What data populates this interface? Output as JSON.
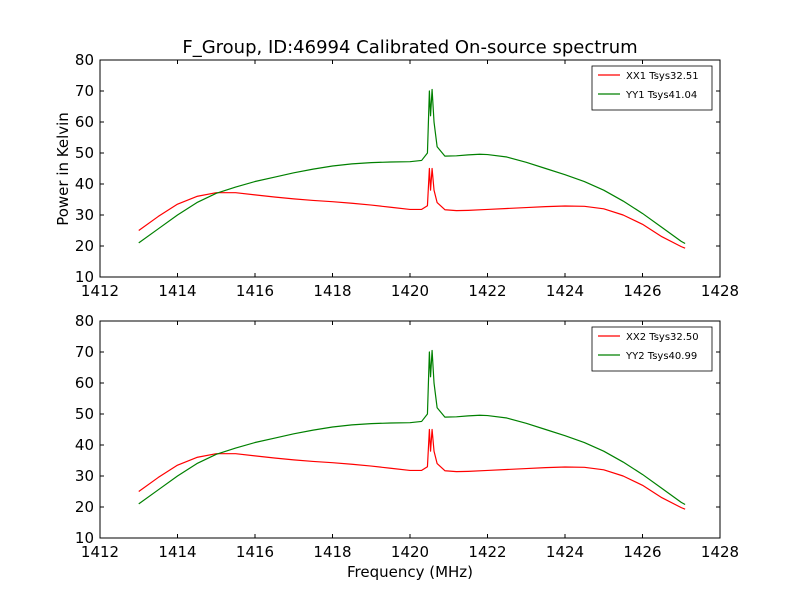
{
  "chart_data": {
    "type": "line",
    "title": "F_Group, ID:46994 Calibrated On-source spectrum",
    "xlabel": "Frequency (MHz)",
    "ylabel": "Power in Kelvin",
    "xlim": [
      1412,
      1428
    ],
    "ylim": [
      10,
      80
    ],
    "xticks": [
      "1412",
      "1414",
      "1416",
      "1418",
      "1420",
      "1422",
      "1424",
      "1426",
      "1428"
    ],
    "yticks": [
      "10",
      "20",
      "30",
      "40",
      "50",
      "60",
      "70",
      "80"
    ],
    "legend_position": "top-right",
    "grid": false,
    "panels": [
      {
        "series": [
          {
            "name": "XX1 Tsys32.51",
            "color": "#ff0000",
            "points": [
              [
                1413.0,
                25.0
              ],
              [
                1413.5,
                29.5
              ],
              [
                1414.0,
                33.5
              ],
              [
                1414.5,
                36.0
              ],
              [
                1415.0,
                37.2
              ],
              [
                1415.5,
                37.2
              ],
              [
                1416.0,
                36.5
              ],
              [
                1416.5,
                35.8
              ],
              [
                1417.0,
                35.2
              ],
              [
                1417.5,
                34.7
              ],
              [
                1418.0,
                34.3
              ],
              [
                1418.5,
                33.8
              ],
              [
                1419.0,
                33.2
              ],
              [
                1419.5,
                32.5
              ],
              [
                1420.0,
                31.8
              ],
              [
                1420.3,
                31.8
              ],
              [
                1420.45,
                33.0
              ],
              [
                1420.5,
                45.0
              ],
              [
                1420.53,
                38.0
              ],
              [
                1420.57,
                45.0
              ],
              [
                1420.62,
                38.0
              ],
              [
                1420.7,
                34.0
              ],
              [
                1420.9,
                31.7
              ],
              [
                1421.2,
                31.4
              ],
              [
                1421.5,
                31.5
              ],
              [
                1422.0,
                31.8
              ],
              [
                1422.5,
                32.1
              ],
              [
                1423.0,
                32.4
              ],
              [
                1423.5,
                32.7
              ],
              [
                1424.0,
                32.9
              ],
              [
                1424.5,
                32.8
              ],
              [
                1425.0,
                32.0
              ],
              [
                1425.5,
                30.0
              ],
              [
                1426.0,
                27.0
              ],
              [
                1426.5,
                23.0
              ],
              [
                1427.0,
                19.8
              ],
              [
                1427.1,
                19.3
              ]
            ]
          },
          {
            "name": "YY1 Tsys41.04",
            "color": "#008000",
            "points": [
              [
                1413.0,
                21.0
              ],
              [
                1413.5,
                25.5
              ],
              [
                1414.0,
                30.0
              ],
              [
                1414.5,
                34.0
              ],
              [
                1415.0,
                37.0
              ],
              [
                1415.5,
                39.0
              ],
              [
                1416.0,
                40.8
              ],
              [
                1416.5,
                42.2
              ],
              [
                1417.0,
                43.6
              ],
              [
                1417.5,
                44.8
              ],
              [
                1418.0,
                45.8
              ],
              [
                1418.5,
                46.5
              ],
              [
                1419.0,
                46.9
              ],
              [
                1419.5,
                47.1
              ],
              [
                1420.0,
                47.2
              ],
              [
                1420.3,
                47.6
              ],
              [
                1420.45,
                50.0
              ],
              [
                1420.5,
                70.0
              ],
              [
                1420.53,
                62.0
              ],
              [
                1420.57,
                70.5
              ],
              [
                1420.62,
                60.0
              ],
              [
                1420.7,
                52.0
              ],
              [
                1420.9,
                49.0
              ],
              [
                1421.2,
                49.1
              ],
              [
                1421.5,
                49.4
              ],
              [
                1421.8,
                49.6
              ],
              [
                1422.0,
                49.5
              ],
              [
                1422.5,
                48.7
              ],
              [
                1423.0,
                47.0
              ],
              [
                1423.5,
                45.0
              ],
              [
                1424.0,
                43.0
              ],
              [
                1424.5,
                40.8
              ],
              [
                1425.0,
                38.0
              ],
              [
                1425.5,
                34.5
              ],
              [
                1426.0,
                30.5
              ],
              [
                1426.5,
                26.0
              ],
              [
                1427.0,
                21.5
              ],
              [
                1427.1,
                20.8
              ]
            ]
          }
        ]
      },
      {
        "series": [
          {
            "name": "XX2 Tsys32.50",
            "color": "#ff0000",
            "points": [
              [
                1413.0,
                25.0
              ],
              [
                1413.5,
                29.5
              ],
              [
                1414.0,
                33.5
              ],
              [
                1414.5,
                36.0
              ],
              [
                1415.0,
                37.2
              ],
              [
                1415.5,
                37.2
              ],
              [
                1416.0,
                36.5
              ],
              [
                1416.5,
                35.8
              ],
              [
                1417.0,
                35.2
              ],
              [
                1417.5,
                34.7
              ],
              [
                1418.0,
                34.3
              ],
              [
                1418.5,
                33.8
              ],
              [
                1419.0,
                33.2
              ],
              [
                1419.5,
                32.5
              ],
              [
                1420.0,
                31.8
              ],
              [
                1420.3,
                31.8
              ],
              [
                1420.45,
                33.0
              ],
              [
                1420.5,
                45.0
              ],
              [
                1420.53,
                38.0
              ],
              [
                1420.57,
                45.0
              ],
              [
                1420.62,
                38.0
              ],
              [
                1420.7,
                34.0
              ],
              [
                1420.9,
                31.7
              ],
              [
                1421.2,
                31.4
              ],
              [
                1421.5,
                31.5
              ],
              [
                1422.0,
                31.8
              ],
              [
                1422.5,
                32.1
              ],
              [
                1423.0,
                32.4
              ],
              [
                1423.5,
                32.7
              ],
              [
                1424.0,
                32.9
              ],
              [
                1424.5,
                32.8
              ],
              [
                1425.0,
                32.0
              ],
              [
                1425.5,
                30.0
              ],
              [
                1426.0,
                27.0
              ],
              [
                1426.5,
                23.0
              ],
              [
                1427.0,
                19.8
              ],
              [
                1427.1,
                19.3
              ]
            ]
          },
          {
            "name": "YY2 Tsys40.99",
            "color": "#008000",
            "points": [
              [
                1413.0,
                21.0
              ],
              [
                1413.5,
                25.5
              ],
              [
                1414.0,
                30.0
              ],
              [
                1414.5,
                34.0
              ],
              [
                1415.0,
                37.0
              ],
              [
                1415.5,
                39.0
              ],
              [
                1416.0,
                40.8
              ],
              [
                1416.5,
                42.2
              ],
              [
                1417.0,
                43.6
              ],
              [
                1417.5,
                44.8
              ],
              [
                1418.0,
                45.8
              ],
              [
                1418.5,
                46.5
              ],
              [
                1419.0,
                46.9
              ],
              [
                1419.5,
                47.1
              ],
              [
                1420.0,
                47.2
              ],
              [
                1420.3,
                47.6
              ],
              [
                1420.45,
                50.0
              ],
              [
                1420.5,
                70.0
              ],
              [
                1420.53,
                62.0
              ],
              [
                1420.57,
                70.5
              ],
              [
                1420.62,
                60.0
              ],
              [
                1420.7,
                52.0
              ],
              [
                1420.9,
                49.0
              ],
              [
                1421.2,
                49.1
              ],
              [
                1421.5,
                49.4
              ],
              [
                1421.8,
                49.6
              ],
              [
                1422.0,
                49.5
              ],
              [
                1422.5,
                48.7
              ],
              [
                1423.0,
                47.0
              ],
              [
                1423.5,
                45.0
              ],
              [
                1424.0,
                43.0
              ],
              [
                1424.5,
                40.8
              ],
              [
                1425.0,
                38.0
              ],
              [
                1425.5,
                34.5
              ],
              [
                1426.0,
                30.5
              ],
              [
                1426.5,
                26.0
              ],
              [
                1427.0,
                21.5
              ],
              [
                1427.1,
                20.8
              ]
            ]
          }
        ]
      }
    ]
  }
}
